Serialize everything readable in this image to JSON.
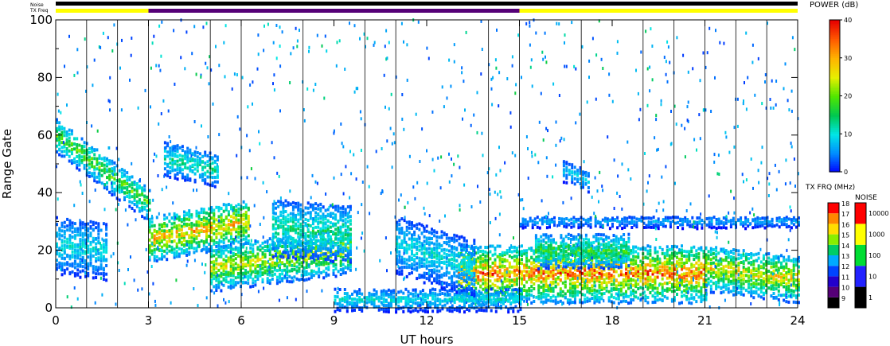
{
  "header": {
    "noise_label": "Noise",
    "txfreq_label": "TX Freq"
  },
  "colors": {
    "background": "#ffffff",
    "frame": "#000000",
    "noise_bar": "#000000",
    "txfreq_high": "#ffff00",
    "txfreq_low": "#550077"
  },
  "chart_data": {
    "type": "heatmap",
    "title": "",
    "xlabel": "UT hours",
    "ylabel": "Range Gate",
    "xlim": [
      0,
      24
    ],
    "ylim": [
      0,
      100
    ],
    "x_ticks": [
      0,
      3,
      6,
      9,
      12,
      15,
      18,
      21,
      24
    ],
    "x_tick_labels": [
      "0",
      "3",
      "6",
      "9",
      "12",
      "15",
      "18",
      "21",
      "24"
    ],
    "y_ticks": [
      0,
      20,
      40,
      60,
      80,
      100
    ],
    "y_tick_labels": [
      "0",
      "20",
      "40",
      "60",
      "80",
      "100"
    ],
    "vertical_separators_hours": [
      1,
      2,
      3,
      5,
      6,
      8,
      10,
      11,
      14,
      15,
      17,
      19,
      20,
      21,
      22,
      23
    ],
    "scatter_bands": [
      {
        "name": "band-A",
        "x_start": 0.0,
        "x_end": 3.0,
        "y_start": 60,
        "y_end": 36,
        "width": 6,
        "peak_power": 22
      },
      {
        "name": "band-B",
        "x_start": 3.0,
        "x_end": 6.2,
        "y_start": 24,
        "y_end": 30,
        "width": 8,
        "peak_power": 33
      },
      {
        "name": "band-C",
        "x_start": 3.5,
        "x_end": 5.2,
        "y_start": 52,
        "y_end": 48,
        "width": 6,
        "peak_power": 15
      },
      {
        "name": "band-D",
        "x_start": 5.0,
        "x_end": 9.5,
        "y_start": 14,
        "y_end": 20,
        "width": 8,
        "peak_power": 28
      },
      {
        "name": "band-E",
        "x_start": 7.0,
        "x_end": 9.5,
        "y_start": 28,
        "y_end": 26,
        "width": 10,
        "peak_power": 16
      },
      {
        "name": "band-F",
        "x_start": 13.0,
        "x_end": 21.0,
        "y_start": 12,
        "y_end": 12,
        "width": 10,
        "peak_power": 38
      },
      {
        "name": "band-G",
        "x_start": 15.5,
        "x_end": 18.5,
        "y_start": 20,
        "y_end": 20,
        "width": 6,
        "peak_power": 20
      },
      {
        "name": "band-H",
        "x_start": 21.0,
        "x_end": 24.0,
        "y_start": 14,
        "y_end": 10,
        "width": 8,
        "peak_power": 30
      },
      {
        "name": "band-I",
        "x_start": 9.0,
        "x_end": 15.0,
        "y_start": 3,
        "y_end": 3,
        "width": 4,
        "peak_power": 12
      },
      {
        "name": "band-J",
        "x_start": 11.0,
        "x_end": 13.5,
        "y_start": 22,
        "y_end": 14,
        "width": 10,
        "peak_power": 12
      },
      {
        "name": "band-K",
        "x_start": 0.0,
        "x_end": 1.6,
        "y_start": 22,
        "y_end": 20,
        "width": 10,
        "peak_power": 12
      },
      {
        "name": "band-L",
        "x_start": 15.0,
        "x_end": 24.0,
        "y_start": 30,
        "y_end": 30,
        "width": 2,
        "peak_power": 8
      },
      {
        "name": "band-M",
        "x_start": 16.4,
        "x_end": 17.2,
        "y_start": 48,
        "y_end": 44,
        "width": 4,
        "peak_power": 10
      }
    ],
    "noise_bar": {
      "from_hour": 0,
      "to_hour": 24
    },
    "tx_freq_segments": [
      {
        "from_hour": 0,
        "to_hour": 3,
        "freq_mhz": 15
      },
      {
        "from_hour": 3,
        "to_hour": 15,
        "freq_mhz": 11
      },
      {
        "from_hour": 15,
        "to_hour": 24,
        "freq_mhz": 15
      }
    ],
    "power_colorbar": {
      "title": "POWER (dB)",
      "min": 0,
      "max": 40,
      "ticks": [
        "0",
        "10",
        "20",
        "30",
        "40"
      ]
    },
    "txfreq_colorbar": {
      "title": "TX FRQ (MHz)",
      "labels": [
        "9",
        "10",
        "11",
        "12",
        "13",
        "14",
        "15",
        "16",
        "17",
        "18"
      ],
      "colors": [
        "#000000",
        "#550077",
        "#2200cc",
        "#0044ff",
        "#00aaff",
        "#00cc66",
        "#88ee00",
        "#ffdd00",
        "#ff8800",
        "#ff0000"
      ]
    },
    "noise_colorbar": {
      "title": "NOISE",
      "labels": [
        "1",
        "10",
        "100",
        "1000",
        "10000"
      ],
      "colors": [
        "#000000",
        "#2222ff",
        "#00dd33",
        "#ffff00",
        "#ff0000"
      ]
    }
  }
}
